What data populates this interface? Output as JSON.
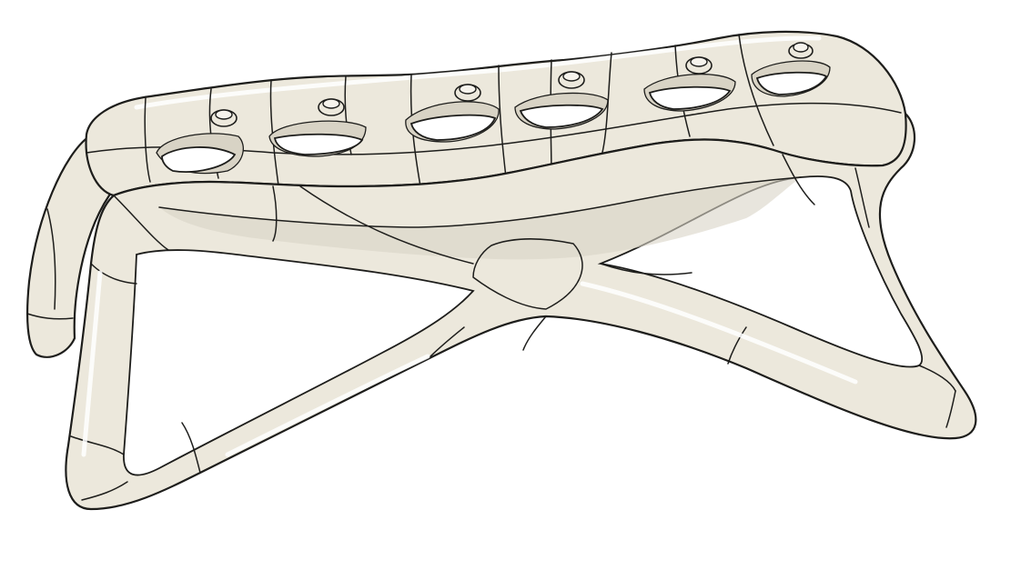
{
  "scene": {
    "subject": "3d-model",
    "surface_color": "#ece8dc",
    "edge_color": "#1d1d1b",
    "background_color": "#ffffff",
    "seat_openings": 6,
    "mounting_bosses": 6
  }
}
